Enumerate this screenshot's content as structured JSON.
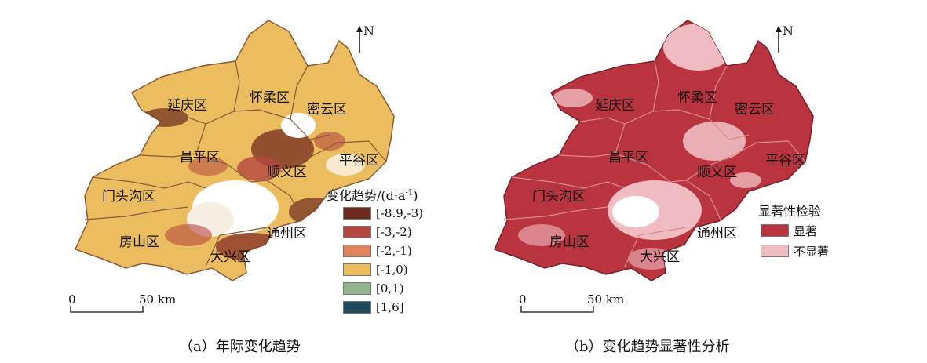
{
  "panel_a": {
    "north": "N",
    "districts": [
      "延庆区",
      "怀柔区",
      "密云区",
      "昌平区",
      "平谷区",
      "顺义区",
      "门头沟区",
      "房山区",
      "通州区",
      "大兴区"
    ],
    "legend_title": "变化趋势/(d·a",
    "legend_title_sup": "-1",
    "legend_title_end": ")",
    "legend": [
      {
        "label": "[-8.9,-3)",
        "color": "#6b2a1c"
      },
      {
        "label": "[-3,-2)",
        "color": "#b4473f"
      },
      {
        "label": "[-2,-1)",
        "color": "#e08560"
      },
      {
        "label": "[-1,0)",
        "color": "#ecbd5f"
      },
      {
        "label": "[0,1)",
        "color": "#93b58d"
      },
      {
        "label": "[1,6]",
        "color": "#1f4a5e"
      }
    ],
    "scale_zero": "0",
    "scale_end": "50 km",
    "caption": "（a）年际变化趋势"
  },
  "panel_b": {
    "north": "N",
    "districts": [
      "延庆区",
      "怀柔区",
      "密云区",
      "昌平区",
      "平谷区",
      "顺义区",
      "门头沟区",
      "房山区",
      "通州区",
      "大兴区"
    ],
    "legend_title": "显著性检验",
    "legend": [
      {
        "label": "显著",
        "color": "#b9343f"
      },
      {
        "label": "不显著",
        "color": "#f0bcc1"
      }
    ],
    "scale_zero": "0",
    "scale_end": "50 km",
    "caption": "（b）变化趋势显著性分析"
  }
}
